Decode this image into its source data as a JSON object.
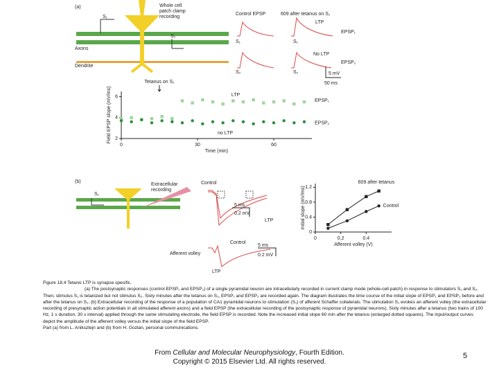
{
  "chart_data": [
    {
      "type": "scatter",
      "y_label": "Field EPSP slope (mV/ms)",
      "x_label": "Time (min)",
      "annotations": [
        "Tetanus on S₁",
        "LTP",
        "no LTP"
      ],
      "x": [
        0,
        4,
        8,
        12,
        16,
        20,
        24,
        28,
        32,
        36,
        40,
        44,
        48,
        52,
        56,
        60,
        64,
        68,
        72
      ],
      "series": [
        {
          "name": "EPSP₁",
          "color": "#9fd59a",
          "marker": "square",
          "values": [
            3.9,
            4.0,
            3.8,
            3.9,
            4.1,
            3.9,
            5.6,
            5.4,
            5.7,
            5.5,
            5.3,
            5.6,
            5.5,
            5.7,
            5.4,
            5.5,
            5.6,
            5.3,
            5.5
          ]
        },
        {
          "name": "EPSP₂",
          "color": "#2e8b3a",
          "marker": "circle",
          "values": [
            3.7,
            3.6,
            3.8,
            3.5,
            3.7,
            3.6,
            3.5,
            3.7,
            3.4,
            3.6,
            3.5,
            3.7,
            3.6,
            3.4,
            3.6,
            3.5,
            3.7,
            3.5,
            3.6
          ]
        }
      ],
      "xlim": [
        0,
        75
      ],
      "xticks": [
        0,
        30,
        60
      ],
      "ylim": [
        2,
        6.5
      ],
      "yticks": [
        2,
        4,
        6
      ]
    },
    {
      "type": "line",
      "y_label": "Initial slope (mV/ms)",
      "x_label": "Afferent volley (V)",
      "x": [
        0.1,
        0.25,
        0.4,
        0.5
      ],
      "series": [
        {
          "name": "609 after tetanus",
          "color": "#222222",
          "marker": "square",
          "values": [
            0.2,
            0.6,
            0.95,
            1.1
          ]
        },
        {
          "name": "Control",
          "color": "#222222",
          "marker": "circle",
          "values": [
            0.1,
            0.3,
            0.55,
            0.7
          ]
        }
      ],
      "xlim": [
        0,
        0.6
      ],
      "xticks": [
        0,
        0.2,
        0.4
      ],
      "ylim": [
        0,
        1.3
      ],
      "yticks": [
        0,
        0.4,
        0.8,
        1.2
      ]
    }
  ],
  "diagram_a": {
    "label": "(a)",
    "recording": "Whole cell",
    "recording2": "patch clamp",
    "recording3": "recording",
    "s1": "S₁",
    "s2": "S₂",
    "axons": "Axons",
    "dendrite": "Dendrite",
    "control": "Control EPSP",
    "after": "609 after tetanus on S₁",
    "ltp": "LTP",
    "epsp1": "EPSP₁",
    "t_s1a": "S₁",
    "t_s1b": "S₁",
    "noltp": "No LTP",
    "epsp2": "EPSP₂",
    "t_s2a": "S₂",
    "t_s2b": "S₂",
    "mv": "5 mV",
    "ms": "50 ms"
  },
  "diagram_b": {
    "label": "(b)",
    "s1": "S₁",
    "extra": "Extracellular",
    "extra2": "recording",
    "control": "Control",
    "ms": "5 ms",
    "mv": "0.2 mV",
    "ltp": "LTP",
    "control2": "Control",
    "volley": "Afferent volley",
    "ms2": "5 ms",
    "mv2": "0.2 mV",
    "ltp2": "LTP"
  },
  "caption": {
    "title": "Figure 18.4 Tetanic LTP is synapse specific.",
    "body": "(a) The postsynaptic responses (control EPSP₁ and EPSP₂) of a single pyramidal neuron are intracellularly recorded in current clamp mode (whole-cell patch) in response to stimulators S₁ and S₂. Then, stimulus S₁ is tetanized but not stimulus S₂. Sixty minutes after the tetanus on S₁, EPSP₁ and EPSP₂ are recorded again. The diagram illustrates the time course of the initial slope of EPSP₁ and EPSP₂ before and after the tetanus on S₁. (b) Extracellular recording of the response of a population of CA1 pyramidal neurons to stimulation (S₁) of afferent Schaffer collaterals. The stimulation S₁ evokes an afferent volley (the extracellular recording of presynaptic action potentials in all stimulated afferent axons) and a field EPSP (the extracellular recording of the postsynaptic response of pyramidal neurons). Sixty minutes after a tetanus (two trains of 100 Hz, 1 s duration, 30 s interval) applied through the same stimulating electrode, the field EPSP is recorded. Note the increased initial slope 60 min after the tetanus (enlarged dotted squares). The input/output curves depict the amplitude of the afferent volley versus the initial slope of the field EPSP.",
    "credit": "Part (a) from L. Aniksztejn and (b) from H. Gozlan, personal communications."
  },
  "footer": {
    "prefix": "From ",
    "book": "Cellular and Molecular Neurophysiology",
    "suffix": ", Fourth Edition.",
    "copyright": "Copyright © 2015 Elsevier Ltd. All rights reserved."
  },
  "page_number": "5"
}
